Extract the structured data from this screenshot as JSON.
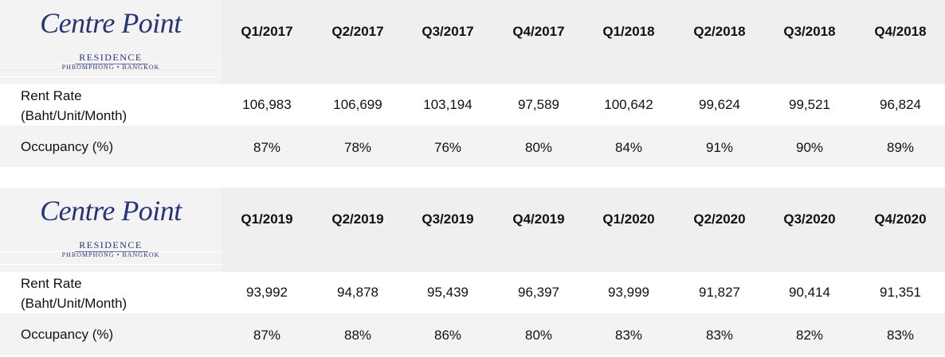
{
  "blocks": [
    {
      "logo": {
        "title": "Centre Point",
        "subtitle": "RESIDENCE",
        "location": "PHROMPHONG • BANGKOK"
      },
      "quarters": [
        "Q1/2017",
        "Q2/2017",
        "Q3/2017",
        "Q4/2017",
        "Q1/2018",
        "Q2/2018",
        "Q3/2018",
        "Q4/2018"
      ],
      "rent_label_1": "Rent Rate",
      "rent_label_2": "(Baht/Unit/Month)",
      "occupancy_label": "Occupancy (%)",
      "rent": [
        "106,983",
        "106,699",
        "103,194",
        "97,589",
        "100,642",
        "99,624",
        "99,521",
        "96,824"
      ],
      "occupancy": [
        "87%",
        "78%",
        "76%",
        "80%",
        "84%",
        "91%",
        "90%",
        "89%"
      ]
    },
    {
      "logo": {
        "title": "Centre Point",
        "subtitle": "RESIDENCE",
        "location": "PHROMPHONG • BANGKOK"
      },
      "quarters": [
        "Q1/2019",
        "Q2/2019",
        "Q3/2019",
        "Q4/2019",
        "Q1/2020",
        "Q2/2020",
        "Q3/2020",
        "Q4/2020"
      ],
      "rent_label_1": "Rent Rate",
      "rent_label_2": "(Baht/Unit/Month)",
      "occupancy_label": "Occupancy (%)",
      "rent": [
        "93,992",
        "94,878",
        "95,439",
        "96,397",
        "93,999",
        "91,827",
        "90,414",
        "91,351"
      ],
      "occupancy": [
        "87%",
        "88%",
        "86%",
        "80%",
        "83%",
        "83%",
        "82%",
        "83%"
      ]
    }
  ],
  "colors": {
    "brand_navy": "#273476",
    "row_shade": "#f3f3f3",
    "header_shade": "#efefef"
  }
}
